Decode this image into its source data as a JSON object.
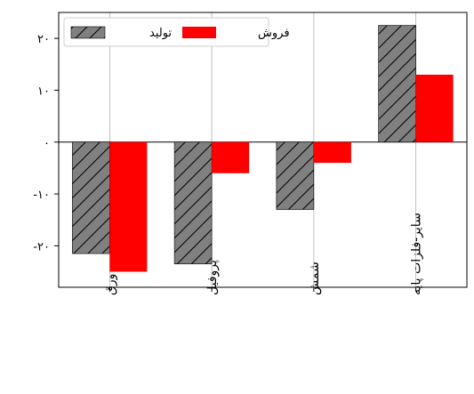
{
  "chart_data": {
    "type": "bar",
    "categories": [
      "ورق",
      "پروفیل",
      "شمش",
      "سایر-فلزات پایه"
    ],
    "series": [
      {
        "name": "تولید",
        "values": [
          -21.5,
          -23.5,
          -13,
          22.5
        ],
        "color": "#808080",
        "hatch": "diagonal"
      },
      {
        "name": "فروش",
        "values": [
          -25,
          -6,
          -4,
          13
        ],
        "color": "#ff0000"
      }
    ],
    "y_ticks": [
      -20,
      -10,
      0,
      10,
      20
    ],
    "y_tick_labels": [
      "-۲۰",
      "-۱۰",
      "۰",
      "۱۰",
      "۲۰"
    ],
    "ylim": [
      -28,
      25
    ],
    "grid": {
      "x": true,
      "y": false
    },
    "legend_position": "top-left",
    "title": "",
    "xlabel": "",
    "ylabel": ""
  }
}
